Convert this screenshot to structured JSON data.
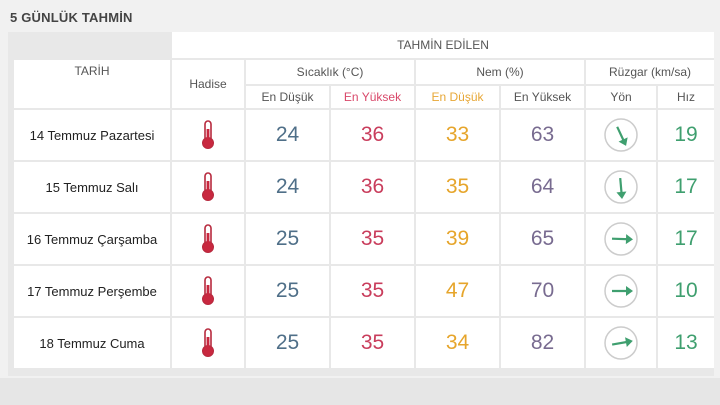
{
  "title": "5 GÜNLÜK TAHMİN",
  "headers": {
    "tahmin_edilen": "TAHMİN EDİLEN",
    "tarih": "TARİH",
    "hadise": "Hadise",
    "sicaklik": "Sıcaklık (°C)",
    "nem": "Nem (%)",
    "ruzgar": "Rüzgar (km/sa)",
    "en_dusuk": "En Düşük",
    "en_yuksek": "En Yüksek",
    "yon": "Yön",
    "hiz": "Hız"
  },
  "rows": [
    {
      "date": "14 Temmuz Pazartesi",
      "icon": "thermometer-icon",
      "temp_min": "24",
      "temp_max": "36",
      "hum_min": "33",
      "hum_max": "63",
      "wind_dir": "arrow-south-southeast",
      "wind_speed": "19"
    },
    {
      "date": "15 Temmuz Salı",
      "icon": "thermometer-icon",
      "temp_min": "24",
      "temp_max": "36",
      "hum_min": "35",
      "hum_max": "64",
      "wind_dir": "arrow-south",
      "wind_speed": "17"
    },
    {
      "date": "16 Temmuz Çarşamba",
      "icon": "thermometer-icon",
      "temp_min": "25",
      "temp_max": "35",
      "hum_min": "39",
      "hum_max": "65",
      "wind_dir": "arrow-east",
      "wind_speed": "17"
    },
    {
      "date": "17 Temmuz Perşembe",
      "icon": "thermometer-icon",
      "temp_min": "25",
      "temp_max": "35",
      "hum_min": "47",
      "hum_max": "70",
      "wind_dir": "arrow-east",
      "wind_speed": "10"
    },
    {
      "date": "18 Temmuz Cuma",
      "icon": "thermometer-icon",
      "temp_min": "25",
      "temp_max": "35",
      "hum_min": "34",
      "hum_max": "82",
      "wind_dir": "arrow-east-northeast",
      "wind_speed": "13"
    }
  ],
  "colors": {
    "low_temp": "#4f6f88",
    "high_temp": "#c93d5c",
    "low_humidity": "#e6a52b",
    "high_humidity": "#786b90",
    "wind": "#3f9f6f"
  }
}
